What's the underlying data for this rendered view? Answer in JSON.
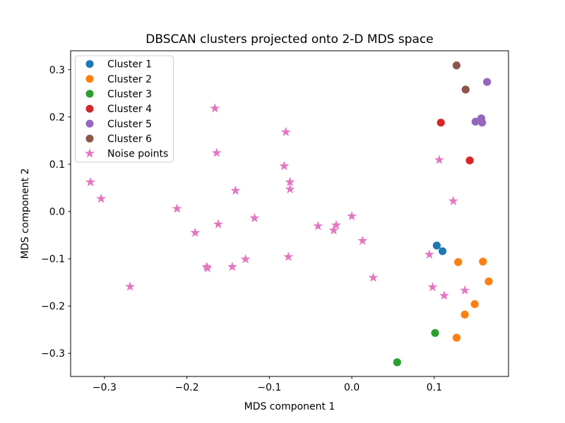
{
  "chart_data": {
    "type": "scatter",
    "title": "DBSCAN clusters projected onto 2-D MDS space",
    "xlabel": "MDS component 1",
    "ylabel": "MDS component 2",
    "xlim": [
      -0.341,
      0.19
    ],
    "ylim": [
      -0.349,
      0.34
    ],
    "xticks": [
      -0.3,
      -0.2,
      -0.1,
      0.0,
      0.1
    ],
    "xtick_labels": [
      "−0.3",
      "−0.2",
      "−0.1",
      "0.0",
      "0.1"
    ],
    "yticks": [
      0.3,
      0.2,
      0.1,
      0.0,
      -0.1,
      -0.2,
      -0.3
    ],
    "ytick_labels": [
      "0.3",
      "0.2",
      "0.1",
      "0.0",
      "−0.1",
      "−0.2",
      "−0.3"
    ],
    "grid": false,
    "legend": {
      "position": "upper left"
    },
    "series": [
      {
        "name": "Cluster 1",
        "color": "#1f77b4",
        "marker": "circle",
        "points": [
          [
            0.103,
            -0.072
          ],
          [
            0.11,
            -0.084
          ]
        ]
      },
      {
        "name": "Cluster 2",
        "color": "#ff7f0e",
        "marker": "circle",
        "points": [
          [
            0.129,
            -0.107
          ],
          [
            0.159,
            -0.106
          ],
          [
            0.166,
            -0.148
          ],
          [
            0.149,
            -0.196
          ],
          [
            0.137,
            -0.218
          ],
          [
            0.127,
            -0.267
          ]
        ]
      },
      {
        "name": "Cluster 3",
        "color": "#2ca02c",
        "marker": "circle",
        "points": [
          [
            0.101,
            -0.257
          ],
          [
            0.055,
            -0.319
          ]
        ]
      },
      {
        "name": "Cluster 4",
        "color": "#d62728",
        "marker": "circle",
        "points": [
          [
            0.108,
            0.188
          ],
          [
            0.143,
            0.108
          ]
        ]
      },
      {
        "name": "Cluster 5",
        "color": "#9467bd",
        "marker": "circle",
        "points": [
          [
            0.15,
            0.19
          ],
          [
            0.157,
            0.197
          ],
          [
            0.158,
            0.188
          ],
          [
            0.164,
            0.274
          ]
        ]
      },
      {
        "name": "Cluster 6",
        "color": "#8c564b",
        "marker": "circle",
        "points": [
          [
            0.127,
            0.309
          ],
          [
            0.138,
            0.258
          ]
        ]
      },
      {
        "name": "Noise points",
        "color": "#e377c2",
        "marker": "star",
        "points": [
          [
            -0.317,
            0.062
          ],
          [
            -0.304,
            0.027
          ],
          [
            -0.269,
            -0.159
          ],
          [
            -0.212,
            0.006
          ],
          [
            -0.19,
            -0.045
          ],
          [
            -0.176,
            -0.117
          ],
          [
            -0.175,
            -0.12
          ],
          [
            -0.166,
            0.218
          ],
          [
            -0.164,
            0.124
          ],
          [
            -0.162,
            -0.027
          ],
          [
            -0.145,
            -0.117
          ],
          [
            -0.141,
            0.044
          ],
          [
            -0.129,
            -0.101
          ],
          [
            -0.118,
            -0.014
          ],
          [
            -0.082,
            0.096
          ],
          [
            -0.08,
            0.168
          ],
          [
            -0.075,
            0.062
          ],
          [
            -0.075,
            0.047
          ],
          [
            -0.077,
            -0.096
          ],
          [
            -0.041,
            -0.031
          ],
          [
            -0.022,
            -0.04
          ],
          [
            -0.019,
            -0.029
          ],
          [
            0.0,
            -0.01
          ],
          [
            0.013,
            -0.062
          ],
          [
            0.026,
            -0.14
          ],
          [
            0.094,
            -0.091
          ],
          [
            0.098,
            -0.16
          ],
          [
            0.106,
            0.109
          ],
          [
            0.112,
            -0.178
          ],
          [
            0.123,
            0.022
          ],
          [
            0.137,
            -0.167
          ]
        ]
      }
    ]
  }
}
